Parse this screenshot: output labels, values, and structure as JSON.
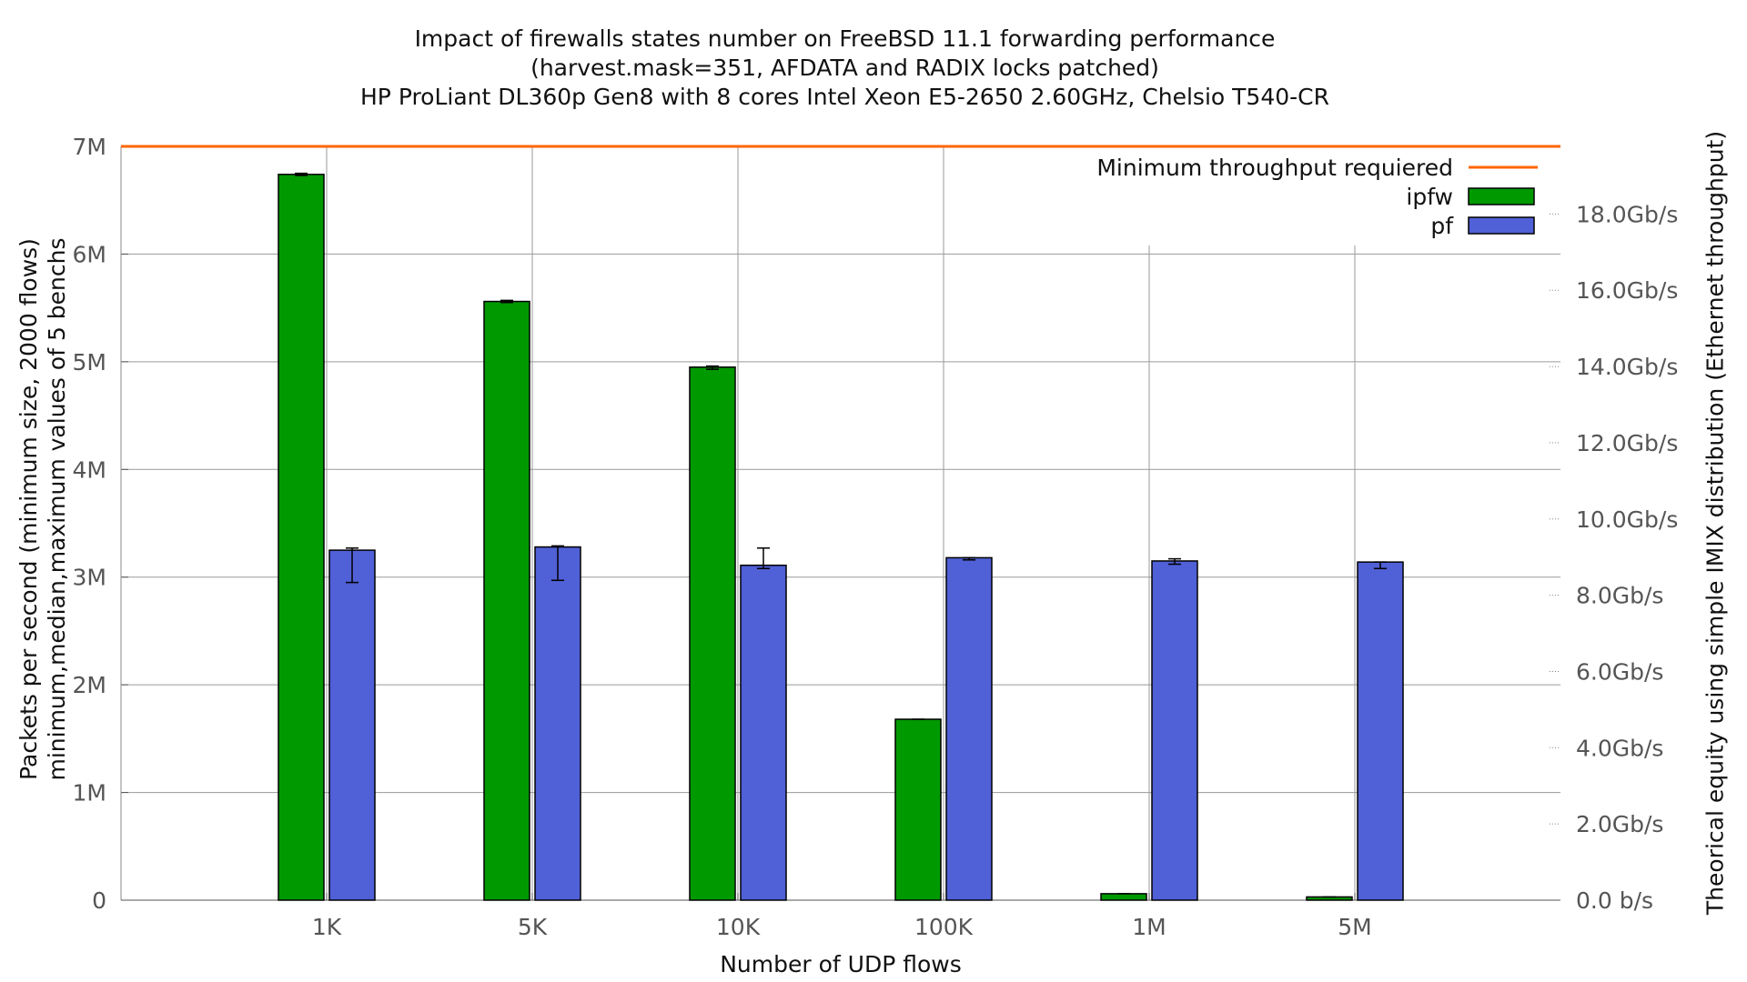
{
  "chart_data": {
    "type": "bar",
    "title_lines": [
      "Impact of firewalls states number on FreeBSD 11.1 forwarding performance",
      "(harvest.mask=351, AFDATA and RADIX locks patched)",
      "HP ProLiant DL360p Gen8 with 8 cores Intel Xeon E5-2650 2.60GHz, Chelsio T540-CR"
    ],
    "xlabel": "Number of UDP flows",
    "ylabel_lines": [
      "Packets per second (minimum size, 2000 flows)",
      "minimum,median,maximum values of 5 benchs"
    ],
    "y2label": "Theorical equity using simple IMIX distribution (Ethernet throughput)",
    "categories": [
      "1K",
      "5K",
      "10K",
      "100K",
      "1M",
      "5M"
    ],
    "ylim": [
      0,
      7000000
    ],
    "yticks": [
      {
        "value": 0,
        "label": "0"
      },
      {
        "value": 1000000,
        "label": "1M"
      },
      {
        "value": 2000000,
        "label": "2M"
      },
      {
        "value": 3000000,
        "label": "3M"
      },
      {
        "value": 4000000,
        "label": "4M"
      },
      {
        "value": 5000000,
        "label": "5M"
      },
      {
        "value": 6000000,
        "label": "6M"
      },
      {
        "value": 7000000,
        "label": "7M"
      }
    ],
    "y2ticks": [
      {
        "value": 0,
        "label": "0.0 b/s"
      },
      {
        "value": 708000,
        "label": "2.0Gb/s"
      },
      {
        "value": 1416000,
        "label": "4.0Gb/s"
      },
      {
        "value": 2124000,
        "label": "6.0Gb/s"
      },
      {
        "value": 2832000,
        "label": "8.0Gb/s"
      },
      {
        "value": 3540000,
        "label": "10.0Gb/s"
      },
      {
        "value": 4248000,
        "label": "12.0Gb/s"
      },
      {
        "value": 4956000,
        "label": "14.0Gb/s"
      },
      {
        "value": 5664000,
        "label": "16.0Gb/s"
      },
      {
        "value": 6372000,
        "label": "18.0Gb/s"
      }
    ],
    "series": [
      {
        "name": "ipfw",
        "color": "#009900",
        "values": [
          6740000,
          5560000,
          4950000,
          1680000,
          60000,
          30000
        ],
        "min": [
          6730000,
          5550000,
          4930000,
          1680000,
          60000,
          30000
        ],
        "max": [
          6750000,
          5570000,
          4960000,
          1680000,
          60000,
          30000
        ]
      },
      {
        "name": "pf",
        "color": "#5060d6",
        "values": [
          3250000,
          3280000,
          3110000,
          3180000,
          3150000,
          3140000
        ],
        "min": [
          2950000,
          2970000,
          3080000,
          3160000,
          3120000,
          3080000
        ],
        "max": [
          3270000,
          3290000,
          3270000,
          3180000,
          3170000,
          3140000
        ]
      }
    ],
    "reference_line": {
      "name": "Minimum throughput requiered",
      "value": 7000000,
      "color": "#ff6600"
    },
    "legend_position": "top-right",
    "grid": true
  }
}
